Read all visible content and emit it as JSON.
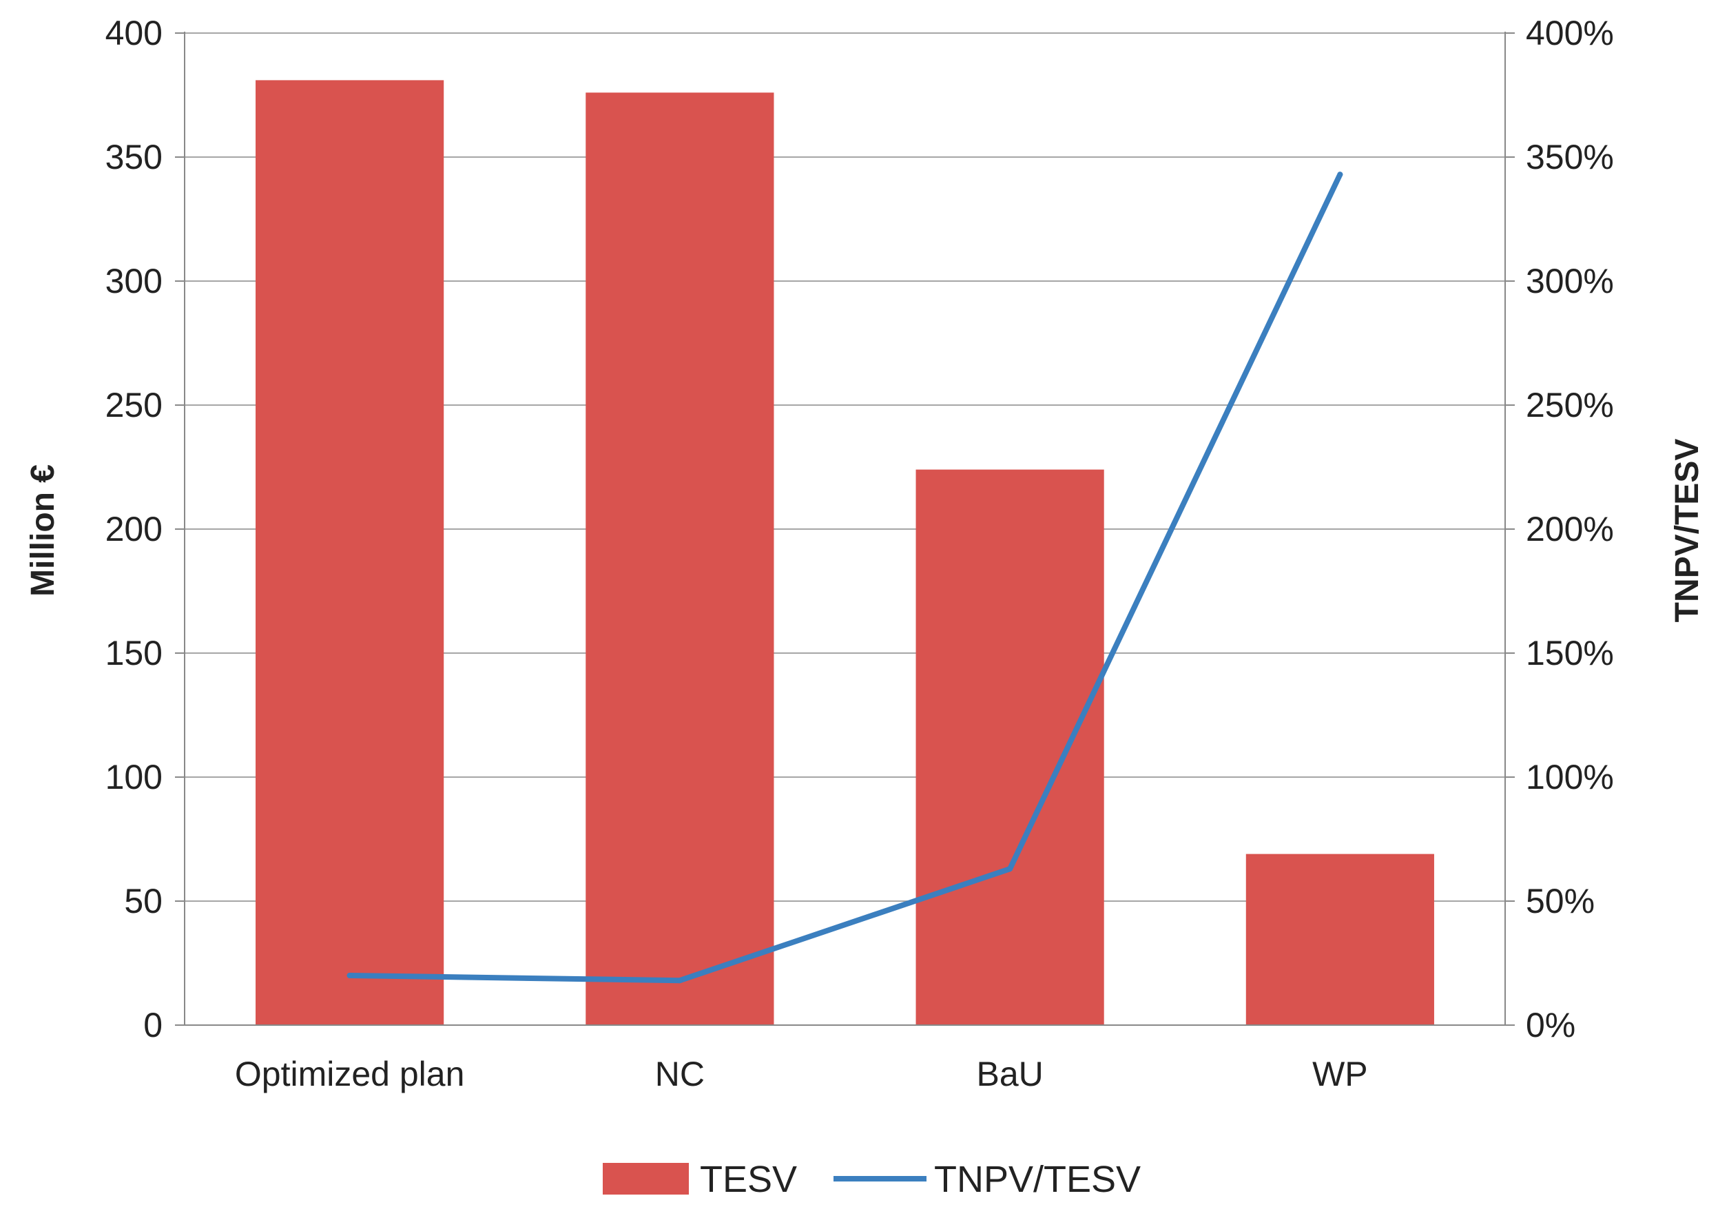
{
  "chart_data": {
    "type": "bar",
    "title": "",
    "categories": [
      "Optimized plan",
      "NC",
      "BaU",
      "WP"
    ],
    "series": [
      {
        "name": "TESV",
        "type": "bar",
        "axis": "left",
        "color": "#d9534f",
        "values": [
          381,
          376,
          224,
          69
        ]
      },
      {
        "name": "TNPV/TESV",
        "type": "line",
        "axis": "right",
        "color": "#3b7fbf",
        "values": [
          20,
          18,
          63,
          343
        ]
      }
    ],
    "y_left": {
      "label": "Million €",
      "min": 0,
      "max": 400,
      "step": 50,
      "ticks": [
        "0",
        "50",
        "100",
        "150",
        "200",
        "250",
        "300",
        "350",
        "400"
      ]
    },
    "y_right": {
      "label": "TNPV/TESV",
      "min": 0,
      "max": 400,
      "step": 50,
      "ticks": [
        "0%",
        "50%",
        "100%",
        "150%",
        "200%",
        "250%",
        "300%",
        "350%",
        "400%"
      ]
    },
    "grid": true,
    "legend": {
      "position": "bottom",
      "entries": [
        "TESV",
        "TNPV/TESV"
      ]
    }
  }
}
